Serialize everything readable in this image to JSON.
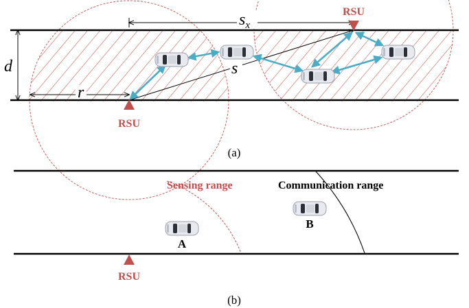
{
  "colors": {
    "rsu": "#c0504d",
    "link": "#4bacc6",
    "road": "#000000",
    "hatch": "#c0504d",
    "car_body": "#e8eaf0",
    "car_glass": "#2b2f38"
  },
  "panel_a": {
    "rsu_top_label": "RSU",
    "rsu_bottom_label": "RSU",
    "label_d": "d",
    "label_r": "r",
    "label_s": "s",
    "label_sx_main": "s",
    "label_sx_sub": "x",
    "caption": "(a)"
  },
  "panel_b": {
    "sensing_label": "Sensing range",
    "comm_label": "Communication range",
    "car_a_label": "A",
    "car_b_label": "B",
    "rsu_label": "RSU",
    "caption": "(b)"
  },
  "icons": {
    "rsu": "triangle-marker-icon",
    "vehicle": "car-top-view-icon"
  }
}
